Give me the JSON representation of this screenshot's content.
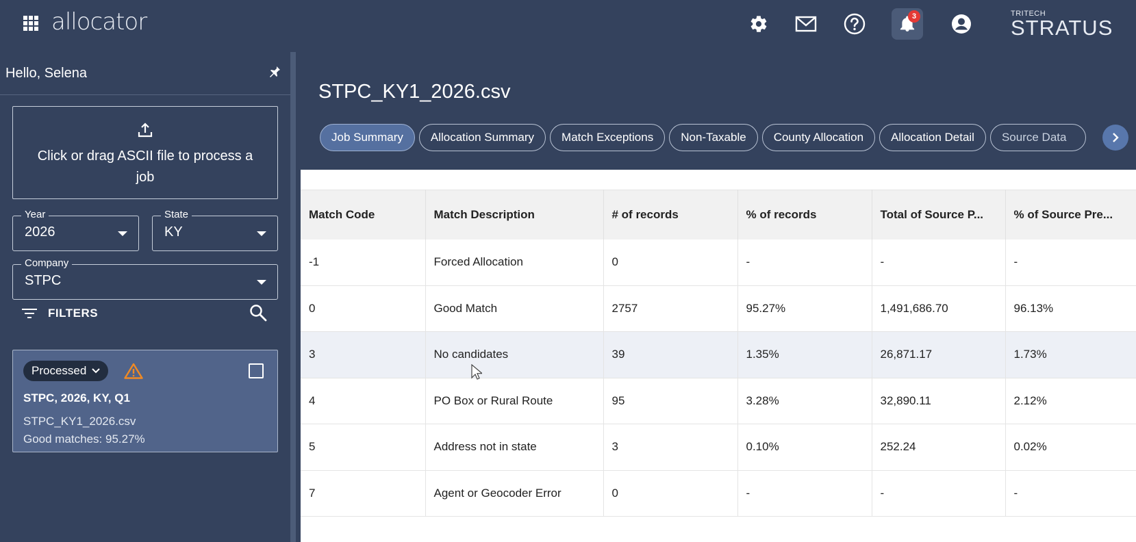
{
  "app": {
    "logo": "allocator"
  },
  "topbar": {
    "notifications_count": "3",
    "brand_small": "TRITECH",
    "brand_big": "STRATUS"
  },
  "sidebar": {
    "greeting": "Hello, Selena",
    "upload_text": "Click or drag ASCII file to process a job",
    "year": {
      "label": "Year",
      "value": "2026"
    },
    "state": {
      "label": "State",
      "value": "KY"
    },
    "company": {
      "label": "Company",
      "value": "STPC"
    },
    "filters_label": "FILTERS",
    "job_card": {
      "status": "Processed",
      "title": "STPC, 2026, KY, Q1",
      "file": "STPC_KY1_2026.csv",
      "good_matches": "Good matches: 95.27%"
    }
  },
  "main": {
    "file_title": "STPC_KY1_2026.csv",
    "tabs": [
      {
        "label": "Job Summary"
      },
      {
        "label": "Allocation Summary"
      },
      {
        "label": "Match Exceptions"
      },
      {
        "label": "Non-Taxable"
      },
      {
        "label": "County Allocation"
      },
      {
        "label": "Allocation Detail"
      },
      {
        "label": "Source Data"
      }
    ]
  },
  "table": {
    "headers": [
      "Match Code",
      "Match Description",
      "# of records",
      "% of records",
      "Total of Source P...",
      "% of Source Pre..."
    ],
    "rows": [
      [
        "-1",
        "Forced Allocation",
        "0",
        "-",
        "-",
        "-"
      ],
      [
        "0",
        "Good Match",
        "2757",
        "95.27%",
        "1,491,686.70",
        "96.13%"
      ],
      [
        "3",
        "No candidates",
        "39",
        "1.35%",
        "26,871.17",
        "1.73%"
      ],
      [
        "4",
        "PO Box or Rural Route",
        "95",
        "3.28%",
        "32,890.11",
        "2.12%"
      ],
      [
        "5",
        "Address not in state",
        "3",
        "0.10%",
        "252.24",
        "0.02%"
      ],
      [
        "7",
        "Agent or Geocoder Error",
        "0",
        "-",
        "-",
        "-"
      ]
    ]
  }
}
